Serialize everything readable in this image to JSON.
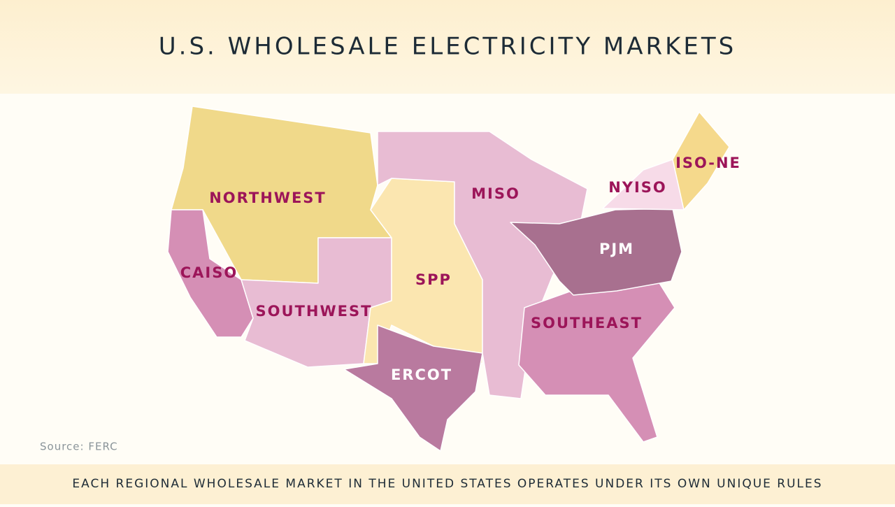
{
  "title": "U.S. WHOLESALE ELECTRICITY MARKETS",
  "regions": [
    {
      "label": "NORTHWEST"
    },
    {
      "label": "CAISO"
    },
    {
      "label": "SOUTHWEST"
    },
    {
      "label": "SPP"
    },
    {
      "label": "ERCOT"
    },
    {
      "label": "MISO"
    },
    {
      "label": "SOUTHEAST"
    },
    {
      "label": "PJM"
    },
    {
      "label": "NYISO"
    },
    {
      "label": "ISO-NE"
    }
  ],
  "source": "Source: FERC",
  "footer": "EACH REGIONAL WHOLESALE MARKET IN THE UNITED STATES OPERATES UNDER ITS OWN UNIQUE RULES"
}
